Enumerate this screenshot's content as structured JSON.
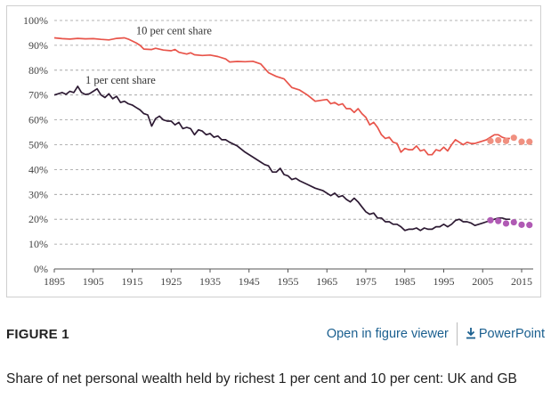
{
  "chart_data": {
    "type": "line",
    "title": "",
    "xlabel": "",
    "ylabel": "",
    "xlim": [
      1895,
      2018
    ],
    "ylim": [
      0,
      100
    ],
    "x_ticks": [
      1895,
      1905,
      1915,
      1925,
      1935,
      1945,
      1955,
      1965,
      1975,
      1985,
      1995,
      2005,
      2015
    ],
    "y_ticks": [
      "0%",
      "10%",
      "20%",
      "30%",
      "40%",
      "50%",
      "60%",
      "70%",
      "80%",
      "90%",
      "100%"
    ],
    "grid": "horizontal-dashed",
    "series": [
      {
        "name": "10 per cent share",
        "color": "#e8544a",
        "points": [
          [
            1895,
            93
          ],
          [
            1897,
            92.7
          ],
          [
            1899,
            92.5
          ],
          [
            1901,
            92.8
          ],
          [
            1903,
            92.6
          ],
          [
            1905,
            92.7
          ],
          [
            1907,
            92.4
          ],
          [
            1909,
            92.2
          ],
          [
            1911,
            92.8
          ],
          [
            1913,
            93
          ],
          [
            1914,
            92.5
          ],
          [
            1916,
            91
          ],
          [
            1917,
            90
          ],
          [
            1918,
            88.5
          ],
          [
            1920,
            88.3
          ],
          [
            1921,
            88.8
          ],
          [
            1923,
            88.1
          ],
          [
            1925,
            87.8
          ],
          [
            1926,
            88.3
          ],
          [
            1927,
            87.2
          ],
          [
            1929,
            86.5
          ],
          [
            1930,
            87
          ],
          [
            1931,
            86.2
          ],
          [
            1933,
            85.9
          ],
          [
            1935,
            86.1
          ],
          [
            1937,
            85.5
          ],
          [
            1939,
            84.5
          ],
          [
            1940,
            83.3
          ],
          [
            1942,
            83.5
          ],
          [
            1944,
            83.4
          ],
          [
            1946,
            83.6
          ],
          [
            1948,
            82.5
          ],
          [
            1950,
            79
          ],
          [
            1952,
            77.5
          ],
          [
            1954,
            76.5
          ],
          [
            1956,
            73
          ],
          [
            1958,
            72
          ],
          [
            1960,
            70
          ],
          [
            1962,
            67.5
          ],
          [
            1964,
            68
          ],
          [
            1965,
            68.2
          ],
          [
            1966,
            66.5
          ],
          [
            1967,
            67
          ],
          [
            1968,
            66
          ],
          [
            1969,
            66.5
          ],
          [
            1970,
            64.5
          ],
          [
            1971,
            64.5
          ],
          [
            1972,
            63
          ],
          [
            1973,
            64.5
          ],
          [
            1974,
            62.5
          ],
          [
            1975,
            61
          ],
          [
            1976,
            58
          ],
          [
            1977,
            59
          ],
          [
            1978,
            57
          ],
          [
            1979,
            54
          ],
          [
            1980,
            52.5
          ],
          [
            1981,
            53
          ],
          [
            1982,
            51
          ],
          [
            1983,
            50.5
          ],
          [
            1984,
            47
          ],
          [
            1985,
            48.5
          ],
          [
            1986,
            48
          ],
          [
            1987,
            48
          ],
          [
            1988,
            49.5
          ],
          [
            1989,
            47.5
          ],
          [
            1990,
            48
          ],
          [
            1991,
            46
          ],
          [
            1992,
            46
          ],
          [
            1993,
            48
          ],
          [
            1994,
            47.5
          ],
          [
            1995,
            49
          ],
          [
            1996,
            47.5
          ],
          [
            1997,
            50
          ],
          [
            1998,
            52
          ],
          [
            1999,
            51
          ],
          [
            2000,
            50
          ],
          [
            2001,
            51
          ],
          [
            2002,
            50.5
          ],
          [
            2003,
            50.5
          ],
          [
            2004,
            51
          ],
          [
            2005,
            51.5
          ],
          [
            2006,
            52
          ],
          [
            2007,
            53
          ],
          [
            2008,
            54
          ],
          [
            2009,
            54
          ],
          [
            2010,
            53
          ],
          [
            2011,
            52.5
          ],
          [
            2012,
            52.5
          ]
        ],
        "markers": [
          [
            2007,
            51.5
          ],
          [
            2009,
            51.8
          ],
          [
            2011,
            51.5
          ],
          [
            2013,
            52.8
          ],
          [
            2015,
            51.2
          ],
          [
            2017,
            51.2
          ]
        ]
      },
      {
        "name": "1 per cent share",
        "color": "#2d1a33",
        "points": [
          [
            1895,
            70
          ],
          [
            1896,
            70.5
          ],
          [
            1897,
            71
          ],
          [
            1898,
            70.3
          ],
          [
            1899,
            71.5
          ],
          [
            1900,
            71
          ],
          [
            1901,
            73.5
          ],
          [
            1902,
            71
          ],
          [
            1903,
            70.2
          ],
          [
            1904,
            70.5
          ],
          [
            1905,
            71.5
          ],
          [
            1906,
            72.5
          ],
          [
            1907,
            70
          ],
          [
            1908,
            69
          ],
          [
            1909,
            70.5
          ],
          [
            1910,
            68.5
          ],
          [
            1911,
            69.5
          ],
          [
            1912,
            67
          ],
          [
            1913,
            67.5
          ],
          [
            1914,
            66.5
          ],
          [
            1915,
            66
          ],
          [
            1916,
            65
          ],
          [
            1917,
            64
          ],
          [
            1918,
            62.5
          ],
          [
            1919,
            62
          ],
          [
            1920,
            57.5
          ],
          [
            1921,
            60.5
          ],
          [
            1922,
            61.5
          ],
          [
            1923,
            60
          ],
          [
            1924,
            59.5
          ],
          [
            1925,
            59.5
          ],
          [
            1926,
            58
          ],
          [
            1927,
            59
          ],
          [
            1928,
            56.5
          ],
          [
            1929,
            57
          ],
          [
            1930,
            56.5
          ],
          [
            1931,
            54
          ],
          [
            1932,
            56
          ],
          [
            1933,
            55.5
          ],
          [
            1934,
            54
          ],
          [
            1935,
            54.5
          ],
          [
            1936,
            53
          ],
          [
            1937,
            53.5
          ],
          [
            1938,
            52
          ],
          [
            1939,
            52
          ],
          [
            1940,
            51
          ],
          [
            1942,
            49.5
          ],
          [
            1944,
            47
          ],
          [
            1946,
            45
          ],
          [
            1948,
            43
          ],
          [
            1949,
            42
          ],
          [
            1950,
            41.5
          ],
          [
            1951,
            39
          ],
          [
            1952,
            39
          ],
          [
            1953,
            40.5
          ],
          [
            1954,
            38
          ],
          [
            1955,
            37.5
          ],
          [
            1956,
            36
          ],
          [
            1957,
            36.5
          ],
          [
            1958,
            35.5
          ],
          [
            1960,
            34
          ],
          [
            1962,
            32.5
          ],
          [
            1964,
            31.5
          ],
          [
            1966,
            29.5
          ],
          [
            1967,
            30.5
          ],
          [
            1968,
            29
          ],
          [
            1969,
            29.5
          ],
          [
            1970,
            28
          ],
          [
            1971,
            27
          ],
          [
            1972,
            28.5
          ],
          [
            1973,
            27
          ],
          [
            1974,
            25
          ],
          [
            1975,
            23
          ],
          [
            1976,
            22
          ],
          [
            1977,
            22.5
          ],
          [
            1978,
            20.5
          ],
          [
            1979,
            20.5
          ],
          [
            1980,
            19
          ],
          [
            1981,
            19
          ],
          [
            1982,
            18
          ],
          [
            1983,
            18
          ],
          [
            1984,
            17
          ],
          [
            1985,
            15.5
          ],
          [
            1986,
            16
          ],
          [
            1987,
            16
          ],
          [
            1988,
            16.5
          ],
          [
            1989,
            15.5
          ],
          [
            1990,
            16.5
          ],
          [
            1991,
            16
          ],
          [
            1992,
            16
          ],
          [
            1993,
            17
          ],
          [
            1994,
            17
          ],
          [
            1995,
            18
          ],
          [
            1996,
            17
          ],
          [
            1997,
            18
          ],
          [
            1998,
            19.5
          ],
          [
            1999,
            20
          ],
          [
            2000,
            19
          ],
          [
            2001,
            19
          ],
          [
            2002,
            18.5
          ],
          [
            2003,
            17.5
          ],
          [
            2004,
            18
          ],
          [
            2005,
            18.5
          ],
          [
            2006,
            19
          ],
          [
            2007,
            19.5
          ],
          [
            2008,
            20
          ],
          [
            2009,
            20.5
          ],
          [
            2010,
            20.5
          ],
          [
            2011,
            20
          ],
          [
            2012,
            20
          ]
        ],
        "markers": [
          [
            2007,
            19.6
          ],
          [
            2009,
            19.3
          ],
          [
            2011,
            18.3
          ],
          [
            2013,
            18.8
          ],
          [
            2015,
            17.8
          ],
          [
            2017,
            17.7
          ]
        ]
      }
    ],
    "marker_color": "#b05ab4",
    "marker_color_top": "#f09080",
    "annotations": [
      {
        "text": "10 per cent share",
        "x": 1916,
        "y": 94.5
      },
      {
        "text": "1 per cent share",
        "x": 1903,
        "y": 74.5
      }
    ]
  },
  "figure": {
    "label": "FIGURE 1",
    "open_viewer": "Open in figure viewer",
    "powerpoint": "PowerPoint",
    "caption": "Share of net personal wealth held by richest 1 per cent and 10 per cent: UK and GB"
  }
}
